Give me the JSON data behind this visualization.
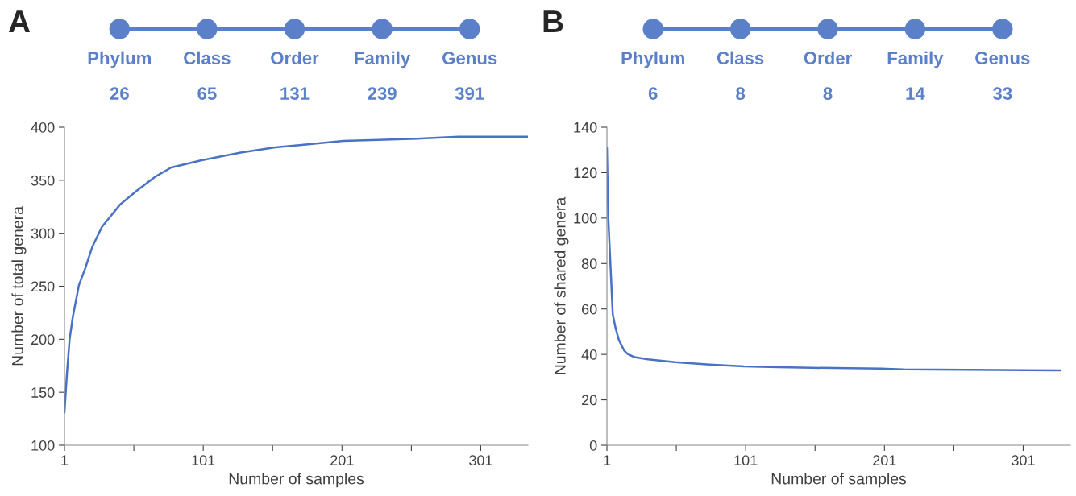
{
  "chart_data": [
    {
      "type": "other",
      "title": "A",
      "categories": [
        "Phylum",
        "Class",
        "Order",
        "Family",
        "Genus"
      ],
      "values": [
        26,
        65,
        131,
        239,
        391
      ],
      "data_labels": true,
      "color": "#5b80c9"
    },
    {
      "type": "line",
      "xlabel": "Number of samples",
      "ylabel": "Number of total genera",
      "color": "#4a72c4",
      "xlim": [
        1,
        335
      ],
      "ylim": [
        100,
        400
      ],
      "xticks": [
        1,
        {
          "value": 51,
          "label": null
        },
        101,
        {
          "value": 151,
          "label": null
        },
        201,
        {
          "value": 251,
          "label": null
        },
        301
      ],
      "yticks": [
        100,
        150,
        200,
        250,
        300,
        350,
        400
      ],
      "grid": false,
      "x": [
        1,
        2.7,
        4.7,
        7,
        11.4,
        16,
        21,
        28,
        41,
        53,
        66,
        78,
        100.5,
        128,
        153,
        178,
        202,
        227,
        252,
        285,
        335
      ],
      "values": [
        131,
        166,
        200,
        221,
        251,
        267,
        287,
        306,
        327,
        340,
        353,
        362,
        369,
        376,
        381,
        384,
        387,
        388,
        389,
        391,
        391
      ]
    },
    {
      "type": "other",
      "title": "B",
      "categories": [
        "Phylum",
        "Class",
        "Order",
        "Family",
        "Genus"
      ],
      "values": [
        6,
        8,
        8,
        14,
        33
      ],
      "data_labels": true,
      "color": "#5b80c9"
    },
    {
      "type": "line",
      "xlabel": "Number of samples",
      "ylabel": "Number of shared genera",
      "color": "#4a72c4",
      "xlim": [
        1,
        335
      ],
      "ylim": [
        0,
        140
      ],
      "xticks": [
        1,
        {
          "value": 51,
          "label": null
        },
        101,
        {
          "value": 151,
          "label": null
        },
        201,
        {
          "value": 251,
          "label": null
        },
        301
      ],
      "yticks": [
        0,
        20,
        40,
        60,
        80,
        100,
        120,
        140
      ],
      "grid": false,
      "x": [
        1,
        2,
        3.5,
        5.2,
        7.2,
        9.6,
        13.3,
        15.8,
        20.8,
        30.6,
        50,
        75,
        99.8,
        124.5,
        149,
        198.5,
        214.6,
        282.5,
        328
      ],
      "values": [
        131,
        100,
        80,
        57.7,
        51.7,
        46.4,
        41.8,
        40.3,
        38.8,
        37.8,
        36.6,
        35.5,
        34.7,
        34.4,
        34.1,
        33.8,
        33.4,
        33.1,
        33
      ]
    }
  ]
}
